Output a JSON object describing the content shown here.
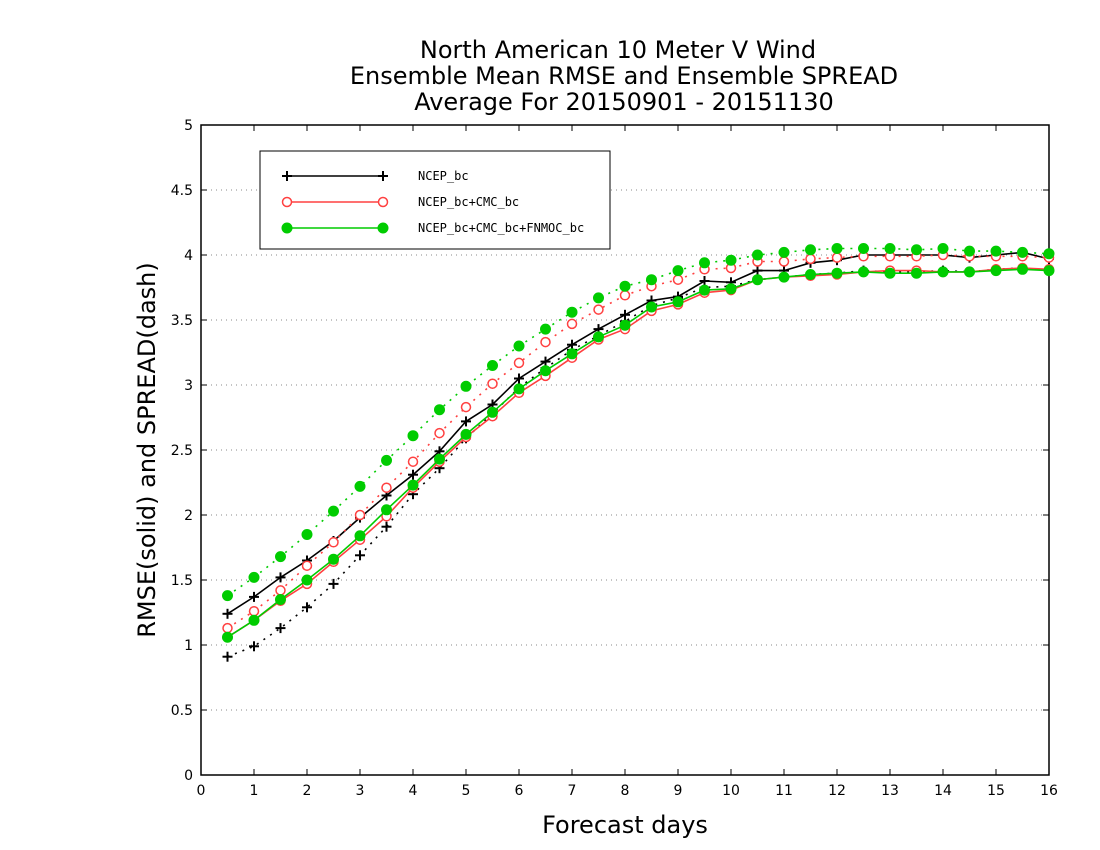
{
  "chart_data": {
    "type": "line",
    "title": [
      "North American 10 Meter V Wind",
      "Ensemble Mean RMSE and Ensemble SPREAD",
      "Average For 20150901 - 20151130"
    ],
    "xlabel": "Forecast days",
    "ylabel": "RMSE(solid) and SPREAD(dash)",
    "xlim": [
      0,
      16
    ],
    "ylim": [
      0,
      5
    ],
    "xticks": [
      "0",
      "1",
      "2",
      "3",
      "4",
      "5",
      "6",
      "7",
      "8",
      "9",
      "10",
      "11",
      "12",
      "13",
      "14",
      "15",
      "16"
    ],
    "yticks": [
      "0",
      "0.5",
      "1",
      "1.5",
      "2",
      "2.5",
      "3",
      "3.5",
      "4",
      "4.5",
      "5"
    ],
    "grid": true,
    "legend_position": "top-left",
    "x": [
      0.5,
      1,
      1.5,
      2,
      2.5,
      3,
      3.5,
      4,
      4.5,
      5,
      5.5,
      6,
      6.5,
      7,
      7.5,
      8,
      8.5,
      9,
      9.5,
      10,
      10.5,
      11,
      11.5,
      12,
      12.5,
      13,
      13.5,
      14,
      14.5,
      15,
      15.5,
      16
    ],
    "series": [
      {
        "name": "NCEP_bc",
        "color": "#000000",
        "marker": "plus",
        "rmse": [
          1.24,
          1.37,
          1.52,
          1.65,
          1.8,
          1.98,
          2.15,
          2.31,
          2.49,
          2.72,
          2.85,
          3.05,
          3.18,
          3.31,
          3.43,
          3.54,
          3.65,
          3.68,
          3.8,
          3.79,
          3.88,
          3.88,
          3.94,
          3.96,
          4.0,
          4.0,
          4.0,
          4.0,
          3.98,
          4.0,
          4.02,
          3.97
        ],
        "spread": [
          0.91,
          0.99,
          1.13,
          1.29,
          1.47,
          1.69,
          1.91,
          2.16,
          2.36,
          2.59,
          2.78,
          2.98,
          3.13,
          3.27,
          3.38,
          3.49,
          3.61,
          3.67,
          3.75,
          3.76,
          3.81,
          3.83,
          3.85,
          3.86,
          3.88,
          3.87,
          3.87,
          3.88,
          3.87,
          3.89,
          3.9,
          3.88
        ]
      },
      {
        "name": "NCEP_bc+CMC_bc",
        "color": "#ff4040",
        "marker": "open-circle",
        "rmse": [
          1.06,
          1.19,
          1.34,
          1.47,
          1.64,
          1.81,
          1.99,
          2.21,
          2.41,
          2.6,
          2.76,
          2.94,
          3.07,
          3.21,
          3.35,
          3.43,
          3.57,
          3.62,
          3.71,
          3.73,
          3.81,
          3.83,
          3.84,
          3.85,
          3.87,
          3.88,
          3.88,
          3.87,
          3.87,
          3.89,
          3.9,
          3.89
        ],
        "spread": [
          1.13,
          1.26,
          1.42,
          1.61,
          1.79,
          2.0,
          2.21,
          2.41,
          2.63,
          2.83,
          3.01,
          3.17,
          3.33,
          3.47,
          3.58,
          3.69,
          3.76,
          3.81,
          3.89,
          3.9,
          3.95,
          3.95,
          3.97,
          3.98,
          3.99,
          3.99,
          3.99,
          4.0,
          3.99,
          3.99,
          3.99,
          3.98
        ]
      },
      {
        "name": "NCEP_bc+CMC_bc+FNMOC_bc",
        "color": "#00cc00",
        "marker": "filled-circle",
        "rmse": [
          1.06,
          1.19,
          1.35,
          1.5,
          1.66,
          1.84,
          2.04,
          2.23,
          2.43,
          2.62,
          2.79,
          2.97,
          3.11,
          3.24,
          3.37,
          3.46,
          3.6,
          3.64,
          3.73,
          3.74,
          3.81,
          3.83,
          3.85,
          3.86,
          3.87,
          3.86,
          3.86,
          3.87,
          3.87,
          3.88,
          3.89,
          3.88
        ],
        "spread": [
          1.38,
          1.52,
          1.68,
          1.85,
          2.03,
          2.22,
          2.42,
          2.61,
          2.81,
          2.99,
          3.15,
          3.3,
          3.43,
          3.56,
          3.67,
          3.76,
          3.81,
          3.88,
          3.94,
          3.96,
          4.0,
          4.02,
          4.04,
          4.05,
          4.05,
          4.05,
          4.04,
          4.05,
          4.03,
          4.03,
          4.02,
          4.01
        ]
      }
    ]
  }
}
